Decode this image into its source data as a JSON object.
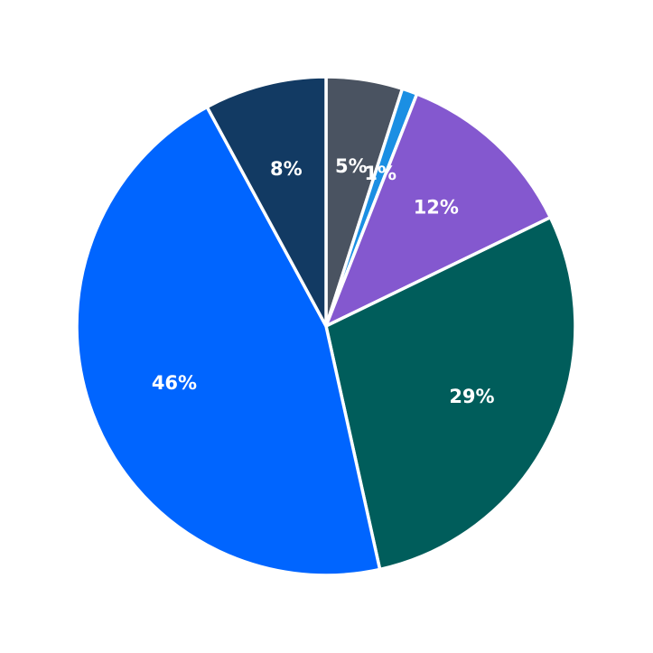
{
  "chart_data": {
    "type": "pie",
    "title": "",
    "start": "12 o'clock",
    "direction": "clockwise",
    "slices": [
      {
        "label": "5%",
        "value": 5,
        "color": "#4a5361"
      },
      {
        "label": "1%",
        "value": 1,
        "color": "#1b8fe3"
      },
      {
        "label": "12%",
        "value": 12,
        "color": "#8458cf"
      },
      {
        "label": "29%",
        "value": 29,
        "color": "#005d5b"
      },
      {
        "label": "46%",
        "value": 46,
        "color": "#0065ff"
      },
      {
        "label": "8%",
        "value": 8,
        "color": "#123a63"
      }
    ]
  }
}
